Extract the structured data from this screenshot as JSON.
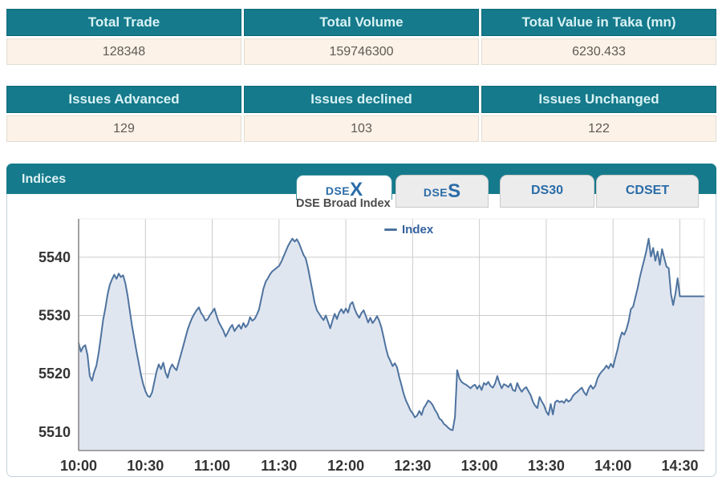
{
  "tables": {
    "trade": {
      "headers": [
        "Total Trade",
        "Total Volume",
        "Total Value in Taka (mn)"
      ],
      "values": [
        "128348",
        "159746300",
        "6230.433"
      ]
    },
    "issues": {
      "headers": [
        "Issues Advanced",
        "Issues declined",
        "Issues Unchanged"
      ],
      "values": [
        "129",
        "103",
        "122"
      ]
    }
  },
  "panel": {
    "title": "Indices"
  },
  "tabs": [
    {
      "small": "DSE",
      "large": "X",
      "active": true
    },
    {
      "small": "DSE",
      "large": "S",
      "active": false
    },
    {
      "label": "DS30",
      "active": false
    },
    {
      "label": "CDSET",
      "active": false
    }
  ],
  "colors": {
    "teal_header": "#157a8b",
    "header_text": "#d9f2f5",
    "row_background": "#fcf2e7",
    "tab_text": "#2a6ca8",
    "panel_border": "#c2d3da"
  },
  "chart_data": {
    "type": "area",
    "title": "DSE Broad Index",
    "legend": [
      {
        "name": "Index",
        "color": "#4e739f"
      }
    ],
    "x_tick_labels": [
      "10:00",
      "10:30",
      "11:00",
      "11:30",
      "12:00",
      "12:30",
      "13:00",
      "13:30",
      "14:00",
      "14:30"
    ],
    "x_tick_minutes": [
      0,
      30,
      60,
      90,
      120,
      150,
      180,
      210,
      240,
      270
    ],
    "y_ticks": [
      5510,
      5520,
      5530,
      5540
    ],
    "ylim": [
      5506.8,
      5546.6
    ],
    "xlim_minutes": [
      0,
      281
    ],
    "grid": true,
    "legend_position": "top-center-floating",
    "line_color": "#4e739f",
    "fill_color": "#e0e6f0",
    "grid_color": "#cccccc",
    "axis_color": "#8a8a8a",
    "label_color": "#333333",
    "points": [
      [
        0,
        5525.3
      ],
      [
        1,
        5523.8
      ],
      [
        2,
        5524.6
      ],
      [
        3,
        5524.9
      ],
      [
        4,
        5523.2
      ],
      [
        5,
        5519.6
      ],
      [
        6,
        5518.8
      ],
      [
        7,
        5520.3
      ],
      [
        8,
        5521.4
      ],
      [
        9,
        5523.6
      ],
      [
        10,
        5526.4
      ],
      [
        11,
        5529.2
      ],
      [
        12,
        5531.2
      ],
      [
        13,
        5533.6
      ],
      [
        14,
        5535.3
      ],
      [
        15,
        5536.2
      ],
      [
        16,
        5537.0
      ],
      [
        17,
        5536.3
      ],
      [
        18,
        5537.2
      ],
      [
        19,
        5536.6
      ],
      [
        20,
        5536.9
      ],
      [
        21,
        5535.5
      ],
      [
        22,
        5533.4
      ],
      [
        23,
        5530.8
      ],
      [
        24,
        5528.2
      ],
      [
        25,
        5526.0
      ],
      [
        26,
        5523.8
      ],
      [
        27,
        5521.9
      ],
      [
        28,
        5519.8
      ],
      [
        29,
        5518.2
      ],
      [
        30,
        5517.0
      ],
      [
        31,
        5516.2
      ],
      [
        32,
        5516.0
      ],
      [
        33,
        5516.8
      ],
      [
        34,
        5518.6
      ],
      [
        35,
        5520.4
      ],
      [
        36,
        5521.6
      ],
      [
        37,
        5520.8
      ],
      [
        38,
        5521.9
      ],
      [
        39,
        5520.2
      ],
      [
        40,
        5519.3
      ],
      [
        41,
        5520.8
      ],
      [
        42,
        5521.6
      ],
      [
        43,
        5521.0
      ],
      [
        44,
        5520.6
      ],
      [
        45,
        5522.0
      ],
      [
        46,
        5523.4
      ],
      [
        47,
        5524.8
      ],
      [
        48,
        5526.2
      ],
      [
        49,
        5527.6
      ],
      [
        50,
        5528.7
      ],
      [
        51,
        5529.6
      ],
      [
        52,
        5530.3
      ],
      [
        53,
        5530.9
      ],
      [
        54,
        5531.4
      ],
      [
        55,
        5530.4
      ],
      [
        56,
        5529.9
      ],
      [
        57,
        5529.1
      ],
      [
        58,
        5529.4
      ],
      [
        59,
        5530.1
      ],
      [
        60,
        5530.6
      ],
      [
        61,
        5531.2
      ],
      [
        62,
        5529.9
      ],
      [
        63,
        5528.8
      ],
      [
        64,
        5528.1
      ],
      [
        65,
        5527.4
      ],
      [
        66,
        5526.4
      ],
      [
        67,
        5527.1
      ],
      [
        68,
        5527.9
      ],
      [
        69,
        5528.4
      ],
      [
        70,
        5527.3
      ],
      [
        71,
        5527.9
      ],
      [
        72,
        5528.4
      ],
      [
        73,
        5527.7
      ],
      [
        74,
        5528.7
      ],
      [
        75,
        5528.0
      ],
      [
        76,
        5528.5
      ],
      [
        77,
        5529.7
      ],
      [
        78,
        5529.1
      ],
      [
        79,
        5529.4
      ],
      [
        80,
        5530.1
      ],
      [
        81,
        5531.0
      ],
      [
        82,
        5532.8
      ],
      [
        83,
        5534.6
      ],
      [
        84,
        5535.8
      ],
      [
        85,
        5536.4
      ],
      [
        86,
        5537.1
      ],
      [
        87,
        5537.6
      ],
      [
        88,
        5537.9
      ],
      [
        89,
        5538.2
      ],
      [
        90,
        5538.5
      ],
      [
        91,
        5539.2
      ],
      [
        92,
        5540.1
      ],
      [
        93,
        5541.0
      ],
      [
        94,
        5541.9
      ],
      [
        95,
        5542.6
      ],
      [
        96,
        5543.2
      ],
      [
        97,
        5542.7
      ],
      [
        98,
        5543.1
      ],
      [
        99,
        5542.4
      ],
      [
        100,
        5541.4
      ],
      [
        101,
        5540.4
      ],
      [
        102,
        5539.8
      ],
      [
        103,
        5538.2
      ],
      [
        104,
        5536.2
      ],
      [
        105,
        5534.2
      ],
      [
        106,
        5532.2
      ],
      [
        107,
        5530.9
      ],
      [
        108,
        5530.3
      ],
      [
        109,
        5529.7
      ],
      [
        110,
        5529.2
      ],
      [
        111,
        5530.0
      ],
      [
        112,
        5528.9
      ],
      [
        113,
        5527.8
      ],
      [
        114,
        5529.1
      ],
      [
        115,
        5530.3
      ],
      [
        116,
        5529.4
      ],
      [
        117,
        5530.5
      ],
      [
        118,
        5531.1
      ],
      [
        119,
        5530.4
      ],
      [
        120,
        5531.2
      ],
      [
        121,
        5530.5
      ],
      [
        122,
        5531.9
      ],
      [
        123,
        5532.3
      ],
      [
        124,
        5531.1
      ],
      [
        125,
        5530.2
      ],
      [
        126,
        5529.6
      ],
      [
        127,
        5530.4
      ],
      [
        128,
        5530.9
      ],
      [
        129,
        5529.9
      ],
      [
        130,
        5528.8
      ],
      [
        131,
        5529.6
      ],
      [
        132,
        5528.7
      ],
      [
        133,
        5529.2
      ],
      [
        134,
        5529.9
      ],
      [
        135,
        5529.1
      ],
      [
        136,
        5527.9
      ],
      [
        137,
        5526.2
      ],
      [
        138,
        5524.4
      ],
      [
        139,
        5523.0
      ],
      [
        140,
        5522.2
      ],
      [
        141,
        5521.3
      ],
      [
        142,
        5521.8
      ],
      [
        143,
        5521.1
      ],
      [
        144,
        5519.4
      ],
      [
        145,
        5518.0
      ],
      [
        146,
        5516.5
      ],
      [
        147,
        5515.4
      ],
      [
        148,
        5514.6
      ],
      [
        149,
        5513.7
      ],
      [
        150,
        5513.2
      ],
      [
        151,
        5512.5
      ],
      [
        152,
        5512.8
      ],
      [
        153,
        5513.6
      ],
      [
        154,
        5512.9
      ],
      [
        155,
        5514.1
      ],
      [
        156,
        5514.7
      ],
      [
        157,
        5515.4
      ],
      [
        158,
        5515.1
      ],
      [
        159,
        5514.6
      ],
      [
        160,
        5513.8
      ],
      [
        161,
        5513.2
      ],
      [
        162,
        5512.3
      ],
      [
        163,
        5512.0
      ],
      [
        164,
        5511.4
      ],
      [
        165,
        5511.1
      ],
      [
        166,
        5510.7
      ],
      [
        167,
        5510.4
      ],
      [
        168,
        5510.3
      ],
      [
        169,
        5512.5
      ],
      [
        170,
        5520.6
      ],
      [
        171,
        5519.2
      ],
      [
        172,
        5518.6
      ],
      [
        173,
        5518.3
      ],
      [
        174,
        5518.1
      ],
      [
        175,
        5517.8
      ],
      [
        176,
        5517.5
      ],
      [
        177,
        5517.9
      ],
      [
        178,
        5518.1
      ],
      [
        179,
        5517.4
      ],
      [
        180,
        5518.0
      ],
      [
        181,
        5517.2
      ],
      [
        182,
        5518.4
      ],
      [
        183,
        5518.1
      ],
      [
        184,
        5518.6
      ],
      [
        185,
        5517.9
      ],
      [
        186,
        5517.6
      ],
      [
        187,
        5518.3
      ],
      [
        188,
        5519.6
      ],
      [
        189,
        5518.4
      ],
      [
        190,
        5517.5
      ],
      [
        191,
        5518.2
      ],
      [
        192,
        5518.0
      ],
      [
        193,
        5517.7
      ],
      [
        194,
        5518.3
      ],
      [
        195,
        5517.2
      ],
      [
        196,
        5517.0
      ],
      [
        197,
        5518.4
      ],
      [
        198,
        5517.5
      ],
      [
        199,
        5516.9
      ],
      [
        200,
        5517.4
      ],
      [
        201,
        5517.7
      ],
      [
        202,
        5517.0
      ],
      [
        203,
        5516.3
      ],
      [
        204,
        5515.2
      ],
      [
        205,
        5514.5
      ],
      [
        206,
        5514.1
      ],
      [
        207,
        5516.0
      ],
      [
        208,
        5515.2
      ],
      [
        209,
        5514.6
      ],
      [
        210,
        5513.5
      ],
      [
        211,
        5512.9
      ],
      [
        212,
        5514.8
      ],
      [
        213,
        5513.0
      ],
      [
        214,
        5515.1
      ],
      [
        215,
        5515.4
      ],
      [
        216,
        5515.1
      ],
      [
        217,
        5515.3
      ],
      [
        218,
        5515.0
      ],
      [
        219,
        5515.6
      ],
      [
        220,
        5515.2
      ],
      [
        221,
        5515.5
      ],
      [
        222,
        5516.2
      ],
      [
        223,
        5516.6
      ],
      [
        224,
        5516.9
      ],
      [
        225,
        5517.3
      ],
      [
        226,
        5517.6
      ],
      [
        227,
        5516.8
      ],
      [
        228,
        5516.3
      ],
      [
        229,
        5517.4
      ],
      [
        230,
        5518.0
      ],
      [
        231,
        5517.4
      ],
      [
        232,
        5517.9
      ],
      [
        233,
        5519.2
      ],
      [
        234,
        5519.9
      ],
      [
        235,
        5520.4
      ],
      [
        236,
        5520.8
      ],
      [
        237,
        5521.4
      ],
      [
        238,
        5520.9
      ],
      [
        239,
        5521.7
      ],
      [
        240,
        5521.1
      ],
      [
        241,
        5522.7
      ],
      [
        242,
        5524.1
      ],
      [
        243,
        5525.9
      ],
      [
        244,
        5527.1
      ],
      [
        245,
        5526.7
      ],
      [
        246,
        5527.6
      ],
      [
        247,
        5529.0
      ],
      [
        248,
        5531.1
      ],
      [
        249,
        5531.5
      ],
      [
        250,
        5533.1
      ],
      [
        251,
        5534.6
      ],
      [
        252,
        5536.5
      ],
      [
        253,
        5538.1
      ],
      [
        254,
        5539.6
      ],
      [
        255,
        5541.2
      ],
      [
        256,
        5543.2
      ],
      [
        257,
        5540.1
      ],
      [
        258,
        5541.6
      ],
      [
        259,
        5539.4
      ],
      [
        260,
        5541.0
      ],
      [
        261,
        5538.7
      ],
      [
        262,
        5541.4
      ],
      [
        263,
        5539.9
      ],
      [
        264,
        5538.4
      ],
      [
        265,
        5538.1
      ],
      [
        266,
        5533.7
      ],
      [
        267,
        5531.8
      ],
      [
        268,
        5533.7
      ],
      [
        269,
        5536.4
      ],
      [
        270,
        5533.3
      ],
      [
        281,
        5533.3
      ]
    ]
  }
}
